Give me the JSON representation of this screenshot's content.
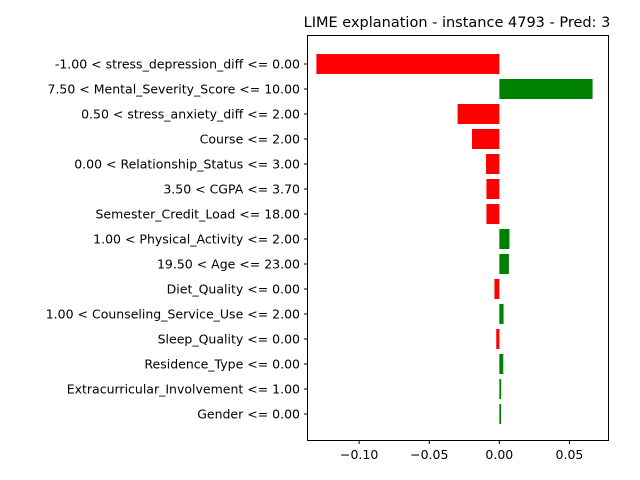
{
  "chart_data": {
    "type": "bar",
    "orientation": "horizontal",
    "title": "LIME explanation - instance 4793 - Pred: 3",
    "xlabel": "",
    "ylabel": "",
    "xlim": [
      -0.1365,
      0.0775
    ],
    "xticks": [
      -0.1,
      -0.05,
      0.0,
      0.05
    ],
    "xtick_labels": [
      "−0.10",
      "−0.05",
      "0.00",
      "0.05"
    ],
    "grid": false,
    "legend": "none",
    "colors": {
      "positive": "#008000",
      "negative": "#ff0000"
    },
    "categories": [
      "-1.00 < stress_depression_diff <= 0.00",
      "7.50 < Mental_Severity_Score <= 10.00",
      "0.50 < stress_anxiety_diff <= 2.00",
      "Course <= 2.00",
      "0.00 < Relationship_Status <= 3.00",
      "3.50 < CGPA <= 3.70",
      "Semester_Credit_Load <= 18.00",
      "1.00 < Physical_Activity <= 2.00",
      "19.50 < Age <= 23.00",
      "Diet_Quality <= 0.00",
      "1.00 < Counseling_Service_Use <= 2.00",
      "Sleep_Quality <= 0.00",
      "Residence_Type <= 0.00",
      "Extracurricular_Involvement <= 1.00",
      "Gender <= 0.00"
    ],
    "values": [
      -0.1305,
      0.0665,
      -0.0298,
      -0.0195,
      -0.0095,
      -0.0092,
      -0.0092,
      0.0072,
      0.0068,
      -0.0035,
      0.003,
      -0.0022,
      0.0028,
      0.0013,
      0.0012
    ]
  }
}
